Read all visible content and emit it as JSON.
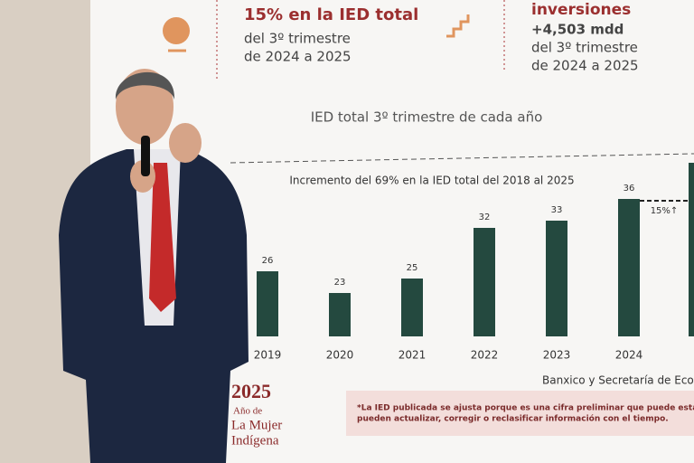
{
  "header": {
    "left_title": "15% en la IED total",
    "left_line1": "del 3º trimestre",
    "left_line2": "de 2024 a 2025",
    "right_title": "inversiones",
    "right_amount": "+4,503 mdd",
    "right_line1": "del 3º trimestre",
    "right_line2": "de 2024 a 2025"
  },
  "chart_data": {
    "type": "bar",
    "title": "IED total 3º trimestre de cada año",
    "annotation": "Incremento del 69% en la IED total del 2018 al 2025",
    "growth_label": "15%↑",
    "categories": [
      "2019",
      "2020",
      "2021",
      "2022",
      "2023",
      "2024"
    ],
    "values": [
      26,
      23,
      25,
      32,
      33,
      36
    ],
    "color": "#24493f"
  },
  "source": "Banxico y Secretaría de Econ",
  "logo": {
    "year": "2025",
    "line1": "Año de",
    "line2": "La Mujer",
    "line3": "Indígena"
  },
  "footnote": {
    "line1": "*La IED publicada se ajusta porque es una cifra preliminar que puede estar inco",
    "line2": "pueden actualizar, corregir o reclasificar información con el tiempo."
  }
}
